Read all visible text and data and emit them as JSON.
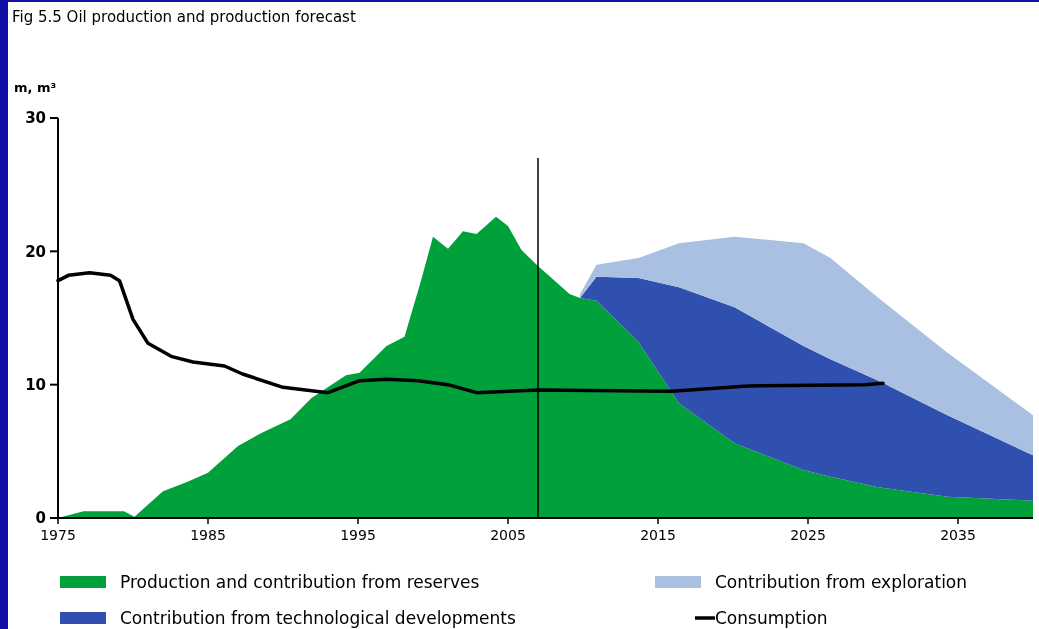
{
  "chart_data": {
    "type": "area",
    "title": "Fig 5.5  Oil production and production forecast",
    "ylabel": "m, m³",
    "stacked": true,
    "legend": "bottom",
    "grid": false,
    "x": [
      1975,
      1976.7,
      1979.4,
      1980.1,
      1982,
      1983.6,
      1985,
      1987,
      1988.6,
      1990.5,
      1991.9,
      1994.2,
      1995.1,
      1996.9,
      1998.1,
      1999.2,
      2000,
      2001,
      2002,
      2002.9,
      2004.2,
      2005,
      2005.9,
      2007,
      2008,
      2009.1,
      2009.8,
      2010.9,
      2013.7,
      2016.4,
      2020.1,
      2024.7,
      2026.5,
      2029.7,
      2034.3,
      2040
    ],
    "series": [
      {
        "name": "Production and contribution from reserves",
        "color": "#00a13a",
        "type": "area",
        "values": [
          0,
          0.5,
          0.5,
          0.1,
          2.0,
          2.7,
          3.4,
          5.4,
          6.4,
          7.4,
          9.0,
          10.7,
          10.9,
          12.9,
          13.6,
          17.8,
          21.1,
          20.2,
          21.5,
          21.3,
          22.6,
          21.9,
          20.1,
          18.9,
          17.9,
          16.8,
          16.5,
          16.3,
          13.2,
          8.6,
          5.6,
          3.6,
          3.1,
          2.3,
          1.6,
          1.3
        ]
      },
      {
        "name": "Contribution from technological developments",
        "color": "#3050b0",
        "type": "area",
        "values": [
          null,
          null,
          null,
          null,
          null,
          null,
          null,
          null,
          null,
          null,
          null,
          null,
          null,
          null,
          null,
          null,
          null,
          null,
          null,
          null,
          null,
          null,
          null,
          null,
          null,
          null,
          0,
          1.8,
          4.8,
          8.7,
          10.2,
          9.3,
          8.8,
          8.0,
          6.1,
          3.4
        ]
      },
      {
        "name": "Contribution from exploration",
        "color": "#a9c0e3",
        "type": "area",
        "values": [
          null,
          null,
          null,
          null,
          null,
          null,
          null,
          null,
          null,
          null,
          null,
          null,
          null,
          null,
          null,
          null,
          null,
          null,
          null,
          null,
          null,
          null,
          null,
          null,
          null,
          null,
          0.3,
          0.9,
          1.5,
          3.3,
          5.3,
          7.7,
          7.6,
          6.2,
          4.7,
          3.0
        ]
      },
      {
        "name": "Consumption",
        "color": "#000000",
        "type": "line",
        "x": [
          1975,
          1975.7,
          1977.1,
          1978.5,
          1979.1,
          1980,
          1981,
          1982.6,
          1984,
          1986.1,
          1987.3,
          1990,
          1993,
          1995.1,
          1996.9,
          1999,
          2001,
          2002.9,
          2007.1,
          2015.9,
          2021,
          2028.8,
          2030
        ],
        "values": [
          17.8,
          18.2,
          18.4,
          18.2,
          17.8,
          14.9,
          13.1,
          12.1,
          11.7,
          11.4,
          10.8,
          9.8,
          9.4,
          10.3,
          10.4,
          10.3,
          10.0,
          9.4,
          9.6,
          9.5,
          9.9,
          10.0,
          10.1
        ]
      }
    ],
    "xlim": [
      1975,
      2040
    ],
    "xticks": [
      1975,
      1985,
      1995,
      2005,
      2015,
      2025,
      2035
    ],
    "ylim": [
      0,
      30
    ],
    "yticks": [
      0,
      10,
      20,
      30
    ],
    "ref_lines": [
      {
        "axis": "x",
        "value": 2007,
        "color": "#000000"
      }
    ]
  }
}
